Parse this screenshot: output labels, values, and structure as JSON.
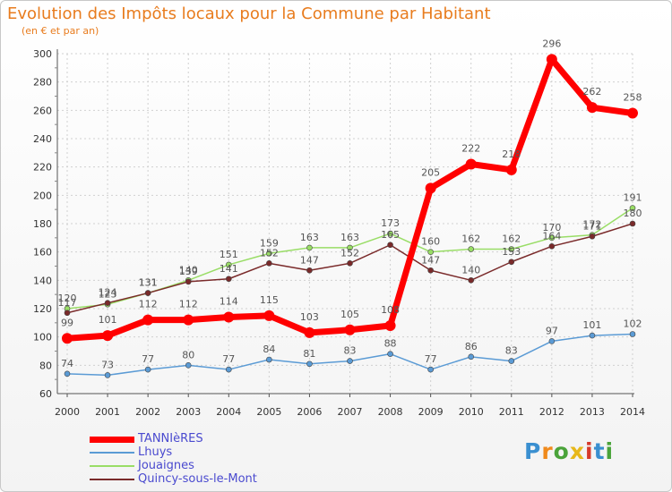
{
  "header": {
    "title": "Evolution des Impôts locaux pour la Commune par Habitant",
    "subtitle": "(en € et par an)"
  },
  "logo": {
    "text": "Proxiti"
  },
  "chart_data": {
    "type": "line",
    "title": "Evolution des Impôts locaux pour la Commune par Habitant",
    "subtitle": "(en € et par an)",
    "x": [
      "2000",
      "2001",
      "2002",
      "2003",
      "2004",
      "2005",
      "2006",
      "2007",
      "2008",
      "2009",
      "2010",
      "2011",
      "2012",
      "2013",
      "2014"
    ],
    "ylim": [
      60,
      300
    ],
    "yticks": [
      60,
      80,
      100,
      120,
      140,
      160,
      180,
      200,
      220,
      240,
      260,
      280,
      300
    ],
    "grid": true,
    "legend_position": "bottom-left",
    "series": [
      {
        "name": "TANNIèRES",
        "color": "#ff0000",
        "values": [
          99,
          101,
          112,
          112,
          114,
          115,
          103,
          105,
          108,
          205,
          222,
          218,
          296,
          262,
          258
        ]
      },
      {
        "name": "Lhuys",
        "color": "#5b9bd5",
        "values": [
          74,
          73,
          77,
          80,
          77,
          84,
          81,
          83,
          88,
          77,
          86,
          83,
          97,
          101,
          102
        ]
      },
      {
        "name": "Jouaignes",
        "color": "#99dd66",
        "values": [
          120,
          123,
          131,
          140,
          151,
          159,
          163,
          163,
          173,
          160,
          162,
          162,
          170,
          172,
          191
        ]
      },
      {
        "name": "Quincy-sous-le-Mont",
        "color": "#7a2a2a",
        "values": [
          117,
          124,
          131,
          139,
          141,
          152,
          147,
          152,
          165,
          147,
          140,
          153,
          164,
          171,
          180
        ]
      }
    ]
  }
}
